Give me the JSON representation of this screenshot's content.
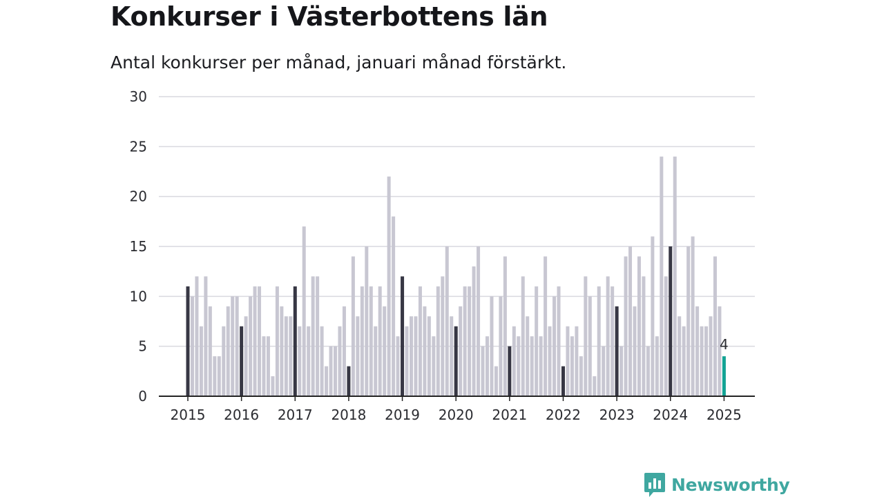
{
  "title": "Konkurser i Västerbottens län",
  "subtitle": "Antal konkurser per månad, januari månad förstärkt.",
  "brand": {
    "name": "Newsworthy",
    "logo_icon": "newsworthy-logo-icon",
    "color": "#3fa7a0"
  },
  "colors": {
    "regular_month": "#c8c7d2",
    "january": "#373744",
    "latest": "#13a394",
    "grid": "#d9d9df",
    "axis": "#222222"
  },
  "chart_data": {
    "type": "bar",
    "title": "Konkurser i Västerbottens län",
    "subtitle": "Antal konkurser per månad, januari månad förstärkt.",
    "xlabel": "",
    "ylabel": "",
    "ylim": [
      0,
      30
    ],
    "yticks": [
      0,
      5,
      10,
      15,
      20,
      25,
      30
    ],
    "xticks": [
      "2015",
      "2016",
      "2017",
      "2018",
      "2019",
      "2020",
      "2021",
      "2022",
      "2023",
      "2024",
      "2025"
    ],
    "grid": true,
    "legend": "none",
    "x_start": "2015-01",
    "x_end": "2025-01",
    "highlight": {
      "january": true,
      "latest_value_label": "4"
    },
    "values": [
      11,
      10,
      12,
      7,
      12,
      9,
      4,
      4,
      7,
      9,
      10,
      10,
      7,
      8,
      10,
      11,
      11,
      6,
      6,
      2,
      11,
      9,
      8,
      8,
      11,
      7,
      17,
      7,
      12,
      12,
      7,
      3,
      5,
      5,
      7,
      9,
      3,
      14,
      8,
      11,
      15,
      11,
      7,
      11,
      9,
      22,
      18,
      6,
      12,
      7,
      8,
      8,
      11,
      9,
      8,
      6,
      11,
      12,
      15,
      8,
      7,
      9,
      11,
      11,
      13,
      15,
      5,
      6,
      10,
      3,
      10,
      14,
      5,
      7,
      6,
      12,
      8,
      6,
      11,
      6,
      14,
      7,
      10,
      11,
      3,
      7,
      6,
      7,
      4,
      12,
      10,
      2,
      11,
      5,
      12,
      11,
      9,
      5,
      14,
      15,
      9,
      14,
      12,
      5,
      16,
      6,
      24,
      12,
      15,
      24,
      8,
      7,
      15,
      16,
      9,
      7,
      7,
      8,
      14,
      9,
      4
    ]
  }
}
